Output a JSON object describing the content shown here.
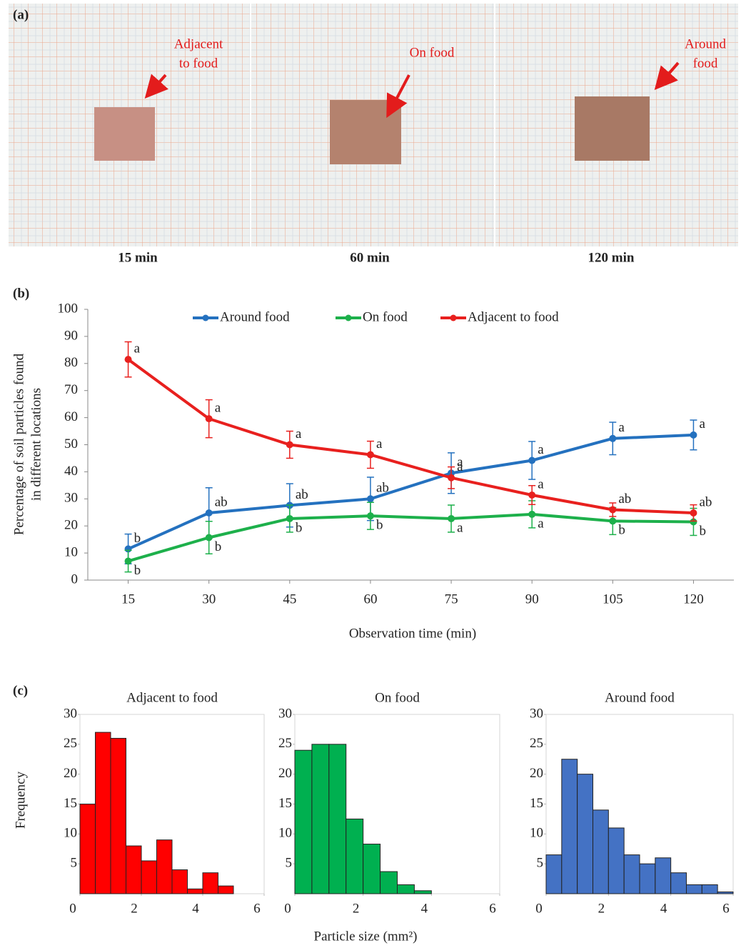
{
  "panel_labels": [
    "(a)",
    "(b)",
    "(c)"
  ],
  "photos": [
    {
      "caption": "15 min",
      "annotation": [
        "Adjacent",
        "to food"
      ]
    },
    {
      "caption": "60 min",
      "annotation": [
        "On food"
      ]
    },
    {
      "caption": "120 min",
      "annotation": [
        "Around",
        "food"
      ]
    }
  ],
  "figure_c": {
    "ylabel": "Frequency",
    "xlabel": "Particle size (mm²)"
  },
  "chart_data": [
    {
      "type": "line",
      "xlabel": "Observation time (min)",
      "ylabel": [
        "Percentage of soil particles found",
        "in different locations"
      ],
      "x": [
        15,
        30,
        45,
        60,
        75,
        90,
        105,
        120
      ],
      "xlim": [
        7.5,
        127.5
      ],
      "xticks": [
        15,
        30,
        45,
        60,
        75,
        90,
        105,
        120
      ],
      "ylim": [
        0,
        100
      ],
      "yticks": [
        0,
        10,
        20,
        30,
        40,
        50,
        60,
        70,
        80,
        90,
        100
      ],
      "legend": "top",
      "series": [
        {
          "name": "Around food",
          "color": "#2471bf",
          "values": [
            11.5,
            24.8,
            27.6,
            30.0,
            39.5,
            44.2,
            52.3,
            53.6
          ],
          "errors": [
            5.5,
            9.3,
            8.0,
            8.0,
            7.5,
            7.0,
            6.0,
            5.5
          ],
          "letters": [
            "b",
            "ab",
            "ab",
            "ab",
            "a",
            "a",
            "a",
            "a"
          ]
        },
        {
          "name": "On food",
          "color": "#1db04b",
          "values": [
            7.0,
            15.7,
            22.7,
            23.7,
            22.7,
            24.3,
            21.8,
            21.5
          ],
          "errors": [
            4.0,
            6.0,
            5.0,
            5.0,
            5.0,
            5.0,
            5.0,
            5.0
          ],
          "letters": [
            "b",
            "b",
            "b",
            "b",
            "a",
            "a",
            "b",
            "b"
          ]
        },
        {
          "name": "Adjacent to food",
          "color": "#e8201e",
          "values": [
            81.5,
            59.6,
            50.0,
            46.3,
            37.8,
            31.4,
            26.0,
            24.8
          ],
          "errors": [
            6.5,
            7.0,
            5.0,
            5.0,
            4.0,
            3.5,
            2.5,
            3.0
          ],
          "letters": [
            "a",
            "a",
            "a",
            "a",
            "a",
            "a",
            "ab",
            "ab"
          ]
        }
      ]
    },
    {
      "type": "histogram",
      "title": "Adjacent to food",
      "color": "#ff0000",
      "bins": [
        0,
        0.5,
        1,
        1.5,
        2,
        2.5,
        3,
        3.5,
        4,
        4.5,
        5
      ],
      "values": [
        15,
        27,
        26,
        8,
        5.5,
        9,
        4,
        0.8,
        3.5,
        1.3
      ],
      "xlim": [
        0,
        6
      ],
      "xticks": [
        0,
        2,
        4,
        6
      ],
      "ylim": [
        0,
        30
      ],
      "yticks": [
        5,
        10,
        15,
        20,
        25,
        30
      ]
    },
    {
      "type": "histogram",
      "title": "On food",
      "color": "#00b050",
      "bins": [
        0,
        0.5,
        1,
        1.5,
        2,
        2.5,
        3,
        3.5,
        4
      ],
      "values": [
        24,
        25,
        25,
        12.5,
        8.3,
        3.7,
        1.5,
        0.5
      ],
      "xlim": [
        0,
        6
      ],
      "xticks": [
        0,
        2,
        4,
        6
      ],
      "ylim": [
        0,
        30
      ],
      "yticks": [
        5,
        10,
        15,
        20,
        25,
        30
      ]
    },
    {
      "type": "histogram",
      "title": "Around food",
      "color": "#4472c4",
      "bins": [
        0,
        0.5,
        1,
        1.5,
        2,
        2.5,
        3,
        3.5,
        4,
        4.5,
        5,
        5.5,
        6
      ],
      "values": [
        6.5,
        22.5,
        20,
        14,
        11,
        6.5,
        5,
        6,
        3.5,
        1.5,
        1.5,
        0.3
      ],
      "xlim": [
        0,
        6
      ],
      "xticks": [
        0,
        2,
        4,
        6
      ],
      "ylim": [
        0,
        30
      ],
      "yticks": [
        5,
        10,
        15,
        20,
        25,
        30
      ]
    }
  ]
}
